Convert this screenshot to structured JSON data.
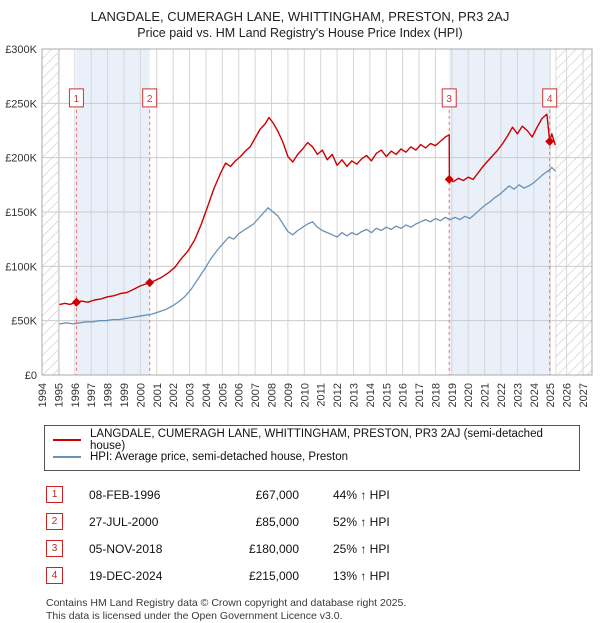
{
  "chart_data": {
    "type": "line",
    "title": "LANGDALE, CUMERAGH LANE, WHITTINGHAM, PRESTON, PR3 2AJ",
    "subtitle": "Price paid vs. HM Land Registry's House Price Index (HPI)",
    "unit": "GBP thousands",
    "x_range": [
      1994,
      2027.55
    ],
    "y_range": [
      0,
      300
    ],
    "y_ticks": [
      {
        "v": 0,
        "label": "£0"
      },
      {
        "v": 50,
        "label": "£50K"
      },
      {
        "v": 100,
        "label": "£100K"
      },
      {
        "v": 150,
        "label": "£150K"
      },
      {
        "v": 200,
        "label": "£200K"
      },
      {
        "v": 250,
        "label": "£250K"
      },
      {
        "v": 300,
        "label": "£300K"
      }
    ],
    "x_ticks": [
      1994,
      1995,
      1996,
      1997,
      1998,
      1999,
      2000,
      2001,
      2002,
      2003,
      2004,
      2005,
      2006,
      2007,
      2008,
      2009,
      2010,
      2011,
      2012,
      2013,
      2014,
      2015,
      2016,
      2017,
      2018,
      2019,
      2020,
      2021,
      2022,
      2023,
      2024,
      2025,
      2026,
      2027
    ],
    "hatch_regions": [
      [
        1994,
        1995.05
      ],
      [
        2025.35,
        2027.55
      ]
    ],
    "bands": [
      [
        1996.1,
        2000.57
      ],
      [
        2018.84,
        2024.97
      ]
    ],
    "band_color": "#e9f0fa",
    "grid_color": "#d6d6d6",
    "sale_line_color": "#e87272",
    "sale_marker_color": "#cc0000",
    "callout_y": 255,
    "series": [
      {
        "name": "LANGDALE, CUMERAGH LANE, WHITTINGHAM, PRESTON, PR3 2AJ (semi-detached house)",
        "color": "#cc0000",
        "width": 1.4,
        "points": [
          [
            1995.1,
            65
          ],
          [
            1995.4,
            66
          ],
          [
            1995.7,
            65
          ],
          [
            1996.1,
            67
          ],
          [
            1996.4,
            68
          ],
          [
            1996.8,
            67
          ],
          [
            1997.2,
            69
          ],
          [
            1997.6,
            70
          ],
          [
            1998.0,
            72
          ],
          [
            1998.4,
            73
          ],
          [
            1998.8,
            75
          ],
          [
            1999.2,
            76
          ],
          [
            1999.6,
            79
          ],
          [
            2000.0,
            82
          ],
          [
            2000.57,
            85
          ],
          [
            2000.9,
            87
          ],
          [
            2001.3,
            90
          ],
          [
            2001.7,
            94
          ],
          [
            2002.1,
            99
          ],
          [
            2002.5,
            107
          ],
          [
            2002.9,
            114
          ],
          [
            2003.3,
            124
          ],
          [
            2003.7,
            138
          ],
          [
            2004.1,
            155
          ],
          [
            2004.5,
            172
          ],
          [
            2004.9,
            186
          ],
          [
            2005.2,
            195
          ],
          [
            2005.5,
            192
          ],
          [
            2005.8,
            197
          ],
          [
            2006.1,
            201
          ],
          [
            2006.4,
            206
          ],
          [
            2006.7,
            210
          ],
          [
            2007.0,
            218
          ],
          [
            2007.3,
            226
          ],
          [
            2007.6,
            231
          ],
          [
            2007.85,
            237
          ],
          [
            2008.1,
            232
          ],
          [
            2008.4,
            224
          ],
          [
            2008.7,
            214
          ],
          [
            2009.0,
            201
          ],
          [
            2009.3,
            196
          ],
          [
            2009.6,
            203
          ],
          [
            2009.9,
            208
          ],
          [
            2010.2,
            214
          ],
          [
            2010.5,
            210
          ],
          [
            2010.8,
            203
          ],
          [
            2011.1,
            207
          ],
          [
            2011.4,
            198
          ],
          [
            2011.7,
            203
          ],
          [
            2012.0,
            193
          ],
          [
            2012.3,
            198
          ],
          [
            2012.6,
            192
          ],
          [
            2012.9,
            197
          ],
          [
            2013.2,
            194
          ],
          [
            2013.5,
            199
          ],
          [
            2013.8,
            202
          ],
          [
            2014.1,
            197
          ],
          [
            2014.4,
            204
          ],
          [
            2014.7,
            207
          ],
          [
            2015.0,
            201
          ],
          [
            2015.3,
            206
          ],
          [
            2015.6,
            203
          ],
          [
            2015.9,
            208
          ],
          [
            2016.2,
            205
          ],
          [
            2016.5,
            210
          ],
          [
            2016.8,
            207
          ],
          [
            2017.1,
            212
          ],
          [
            2017.4,
            209
          ],
          [
            2017.7,
            213
          ],
          [
            2018.0,
            211
          ],
          [
            2018.3,
            215
          ],
          [
            2018.6,
            219
          ],
          [
            2018.84,
            221
          ],
          [
            2018.85,
            180
          ],
          [
            2019.1,
            178
          ],
          [
            2019.4,
            181
          ],
          [
            2019.7,
            179
          ],
          [
            2020.0,
            182
          ],
          [
            2020.3,
            180
          ],
          [
            2020.6,
            186
          ],
          [
            2020.9,
            192
          ],
          [
            2021.2,
            197
          ],
          [
            2021.5,
            202
          ],
          [
            2021.8,
            207
          ],
          [
            2022.1,
            213
          ],
          [
            2022.4,
            220
          ],
          [
            2022.7,
            228
          ],
          [
            2023.0,
            222
          ],
          [
            2023.3,
            229
          ],
          [
            2023.6,
            225
          ],
          [
            2023.9,
            219
          ],
          [
            2024.2,
            228
          ],
          [
            2024.5,
            236
          ],
          [
            2024.8,
            240
          ],
          [
            2024.97,
            215
          ],
          [
            2025.1,
            222
          ],
          [
            2025.3,
            212
          ]
        ]
      },
      {
        "name": "HPI: Average price, semi-detached house, Preston",
        "color": "#6a92b6",
        "width": 1.3,
        "points": [
          [
            1995.1,
            47
          ],
          [
            1995.5,
            48
          ],
          [
            1995.9,
            47
          ],
          [
            1996.3,
            48
          ],
          [
            1996.7,
            49
          ],
          [
            1997.1,
            49
          ],
          [
            1997.5,
            50
          ],
          [
            1997.9,
            50
          ],
          [
            1998.3,
            51
          ],
          [
            1998.7,
            51
          ],
          [
            1999.1,
            52
          ],
          [
            1999.5,
            53
          ],
          [
            1999.9,
            54
          ],
          [
            2000.3,
            55
          ],
          [
            2000.7,
            56
          ],
          [
            2001.1,
            58
          ],
          [
            2001.5,
            60
          ],
          [
            2001.9,
            63
          ],
          [
            2002.3,
            67
          ],
          [
            2002.7,
            72
          ],
          [
            2003.1,
            79
          ],
          [
            2003.5,
            88
          ],
          [
            2003.9,
            97
          ],
          [
            2004.3,
            107
          ],
          [
            2004.7,
            115
          ],
          [
            2005.1,
            122
          ],
          [
            2005.4,
            127
          ],
          [
            2005.7,
            125
          ],
          [
            2006.0,
            130
          ],
          [
            2006.3,
            133
          ],
          [
            2006.6,
            136
          ],
          [
            2006.9,
            139
          ],
          [
            2007.2,
            144
          ],
          [
            2007.5,
            149
          ],
          [
            2007.8,
            154
          ],
          [
            2008.1,
            150
          ],
          [
            2008.4,
            146
          ],
          [
            2008.7,
            139
          ],
          [
            2009.0,
            132
          ],
          [
            2009.3,
            129
          ],
          [
            2009.6,
            133
          ],
          [
            2009.9,
            136
          ],
          [
            2010.2,
            139
          ],
          [
            2010.5,
            141
          ],
          [
            2010.8,
            136
          ],
          [
            2011.1,
            133
          ],
          [
            2011.4,
            131
          ],
          [
            2011.7,
            129
          ],
          [
            2012.0,
            127
          ],
          [
            2012.3,
            131
          ],
          [
            2012.6,
            128
          ],
          [
            2012.9,
            131
          ],
          [
            2013.2,
            129
          ],
          [
            2013.5,
            132
          ],
          [
            2013.8,
            134
          ],
          [
            2014.1,
            131
          ],
          [
            2014.4,
            135
          ],
          [
            2014.7,
            133
          ],
          [
            2015.0,
            136
          ],
          [
            2015.3,
            134
          ],
          [
            2015.6,
            137
          ],
          [
            2015.9,
            135
          ],
          [
            2016.2,
            138
          ],
          [
            2016.5,
            136
          ],
          [
            2016.8,
            139
          ],
          [
            2017.1,
            141
          ],
          [
            2017.4,
            143
          ],
          [
            2017.7,
            141
          ],
          [
            2018.0,
            144
          ],
          [
            2018.3,
            142
          ],
          [
            2018.6,
            145
          ],
          [
            2018.9,
            143
          ],
          [
            2019.2,
            145
          ],
          [
            2019.5,
            143
          ],
          [
            2019.8,
            146
          ],
          [
            2020.1,
            144
          ],
          [
            2020.4,
            148
          ],
          [
            2020.7,
            152
          ],
          [
            2021.0,
            156
          ],
          [
            2021.3,
            159
          ],
          [
            2021.6,
            163
          ],
          [
            2021.9,
            166
          ],
          [
            2022.2,
            170
          ],
          [
            2022.5,
            174
          ],
          [
            2022.8,
            171
          ],
          [
            2023.1,
            175
          ],
          [
            2023.4,
            172
          ],
          [
            2023.7,
            174
          ],
          [
            2024.0,
            177
          ],
          [
            2024.3,
            181
          ],
          [
            2024.6,
            185
          ],
          [
            2024.9,
            188
          ],
          [
            2025.1,
            191
          ],
          [
            2025.3,
            188
          ]
        ]
      }
    ],
    "sales": [
      {
        "num": "1",
        "x": 1996.1,
        "y": 67,
        "date": "08-FEB-1996",
        "price": "£67,000",
        "delta": "44% ↑ HPI"
      },
      {
        "num": "2",
        "x": 2000.57,
        "y": 85,
        "date": "27-JUL-2000",
        "price": "£85,000",
        "delta": "52% ↑ HPI"
      },
      {
        "num": "3",
        "x": 2018.84,
        "y": 180,
        "date": "05-NOV-2018",
        "price": "£180,000",
        "delta": "25% ↑ HPI"
      },
      {
        "num": "4",
        "x": 2024.97,
        "y": 215,
        "date": "19-DEC-2024",
        "price": "£215,000",
        "delta": "13% ↑ HPI"
      }
    ]
  },
  "footer": {
    "line1": "Contains HM Land Registry data © Crown copyright and database right 2025.",
    "line2": "This data is licensed under the Open Government Licence v3.0."
  }
}
